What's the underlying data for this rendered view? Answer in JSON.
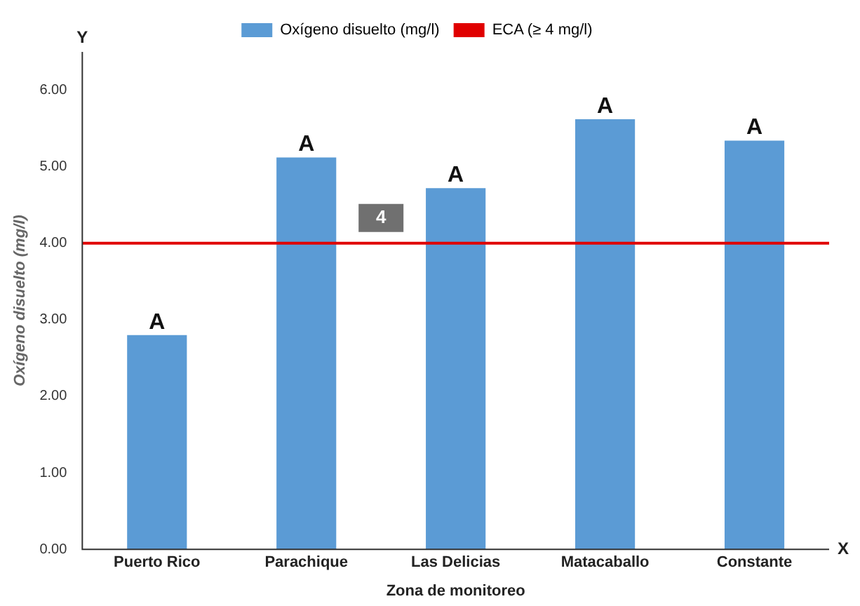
{
  "chart_data": {
    "type": "bar",
    "xlabel": "Zona de monitoreo",
    "ylabel": "Oxígeno disuelto (mg/l)",
    "categories": [
      "Puerto Rico",
      "Parachique",
      "Las Delicias",
      "Matacaballo",
      "Constante"
    ],
    "series": [
      {
        "name": "Oxígeno disuelto (mg/l)",
        "color": "#5b9bd5",
        "values": [
          2.8,
          5.12,
          4.72,
          5.62,
          5.34
        ]
      }
    ],
    "ylim": [
      0,
      6.5
    ],
    "yticks": [
      {
        "value": 0,
        "label": "0.00"
      },
      {
        "value": 1,
        "label": "1.00"
      },
      {
        "value": 2,
        "label": "2.00"
      },
      {
        "value": 3,
        "label": "3.00"
      },
      {
        "value": 4,
        "label": "4.00"
      },
      {
        "value": 5,
        "label": "5.00"
      },
      {
        "value": 6,
        "label": "6.00"
      }
    ],
    "ref_lines": [
      {
        "axis": "y",
        "value": 4,
        "label": "ECA (≥ 4 mg/l)",
        "color": "#e00000"
      }
    ],
    "annotations": [
      {
        "text": "A",
        "x": "Puerto Rico",
        "y": 2.8
      },
      {
        "text": "A",
        "x": "Parachique",
        "y": 5.12
      },
      {
        "text": "A",
        "x": "Las Delicias",
        "y": 4.72
      },
      {
        "text": "A",
        "x": "Matacaballo",
        "y": 5.62
      },
      {
        "text": "A",
        "x": "Constante",
        "y": 5.34
      },
      {
        "text": "4",
        "y": 4
      },
      "Y",
      "X"
    ],
    "grid": false,
    "legend": "top"
  }
}
